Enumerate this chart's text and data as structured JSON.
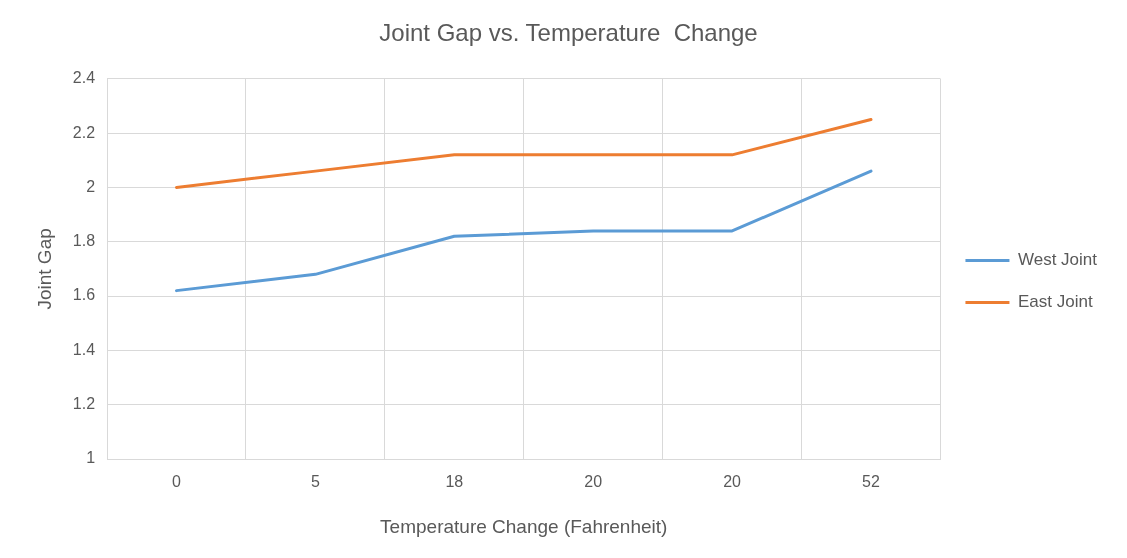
{
  "chart_data": {
    "type": "line",
    "title": "Joint Gap vs. Temperature  Change",
    "xlabel": "Temperature Change (Fahrenheit)",
    "ylabel": "Joint Gap",
    "categories": [
      "0",
      "5",
      "18",
      "20",
      "20",
      "52"
    ],
    "series": [
      {
        "name": "West Joint",
        "color": "#5b9bd5",
        "values": [
          1.62,
          1.68,
          1.82,
          1.84,
          1.84,
          2.06
        ]
      },
      {
        "name": "East Joint",
        "color": "#ed7d31",
        "values": [
          2.0,
          2.06,
          2.12,
          2.12,
          2.12,
          2.25
        ]
      }
    ],
    "ylim": [
      1,
      2.4
    ],
    "yticks": [
      1,
      1.2,
      1.4,
      1.6,
      1.8,
      2,
      2.2,
      2.4
    ],
    "grid": true,
    "legend": "right",
    "marker": "none",
    "line_style": "solid"
  }
}
